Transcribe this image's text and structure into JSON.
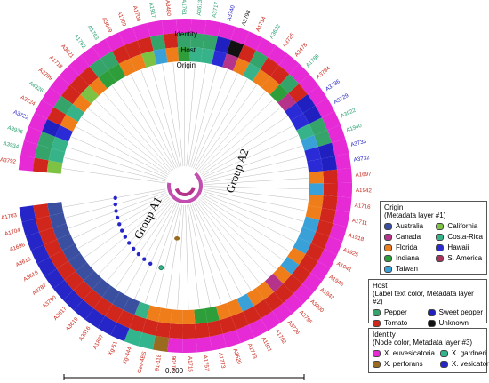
{
  "ring_labels": {
    "identity": "Identity",
    "host": "Host",
    "origin": "Origin"
  },
  "group_labels": {
    "a1": "Group A1",
    "a2": "Group A2"
  },
  "scale_bar": {
    "label": "0.200"
  },
  "colors": {
    "australia": "#3a4fa0",
    "california": "#7dc242",
    "canada": "#b5338a",
    "costa_rica": "#37b38a",
    "florida": "#ef7d1a",
    "hawaii": "#2a2ad6",
    "indiana": "#2e9e3a",
    "s_america": "#a8325a",
    "taiwan": "#3aa0d8",
    "pepper": "#35a46b",
    "sweet_pepper": "#2020c0",
    "tomato": "#d0261c",
    "unknown": "#111111",
    "x_euvesicatoria": "#e52ad6",
    "x_gardneri": "#32b48c",
    "x_perforans": "#9a6a1e",
    "x_vesicatoria": "#2626c8"
  },
  "legends": {
    "origin": {
      "title_1": "Origin",
      "title_2": "(Metadata layer #1)",
      "entries": [
        "Australia",
        "California",
        "Canada",
        "Costa-Rica",
        "Florida",
        "Hawaii",
        "Indiana",
        "S. America",
        "Taiwan"
      ],
      "swatches": [
        "australia",
        "california",
        "canada",
        "costa_rica",
        "florida",
        "hawaii",
        "indiana",
        "s_america",
        "taiwan"
      ]
    },
    "host": {
      "title_1": "Host",
      "title_2": "(Label text color, Metadata layer #2)",
      "entries": [
        "Pepper",
        "Sweet pepper",
        "Tomato",
        "Unknown"
      ],
      "swatches": [
        "pepper",
        "sweet_pepper",
        "tomato",
        "unknown"
      ]
    },
    "identity": {
      "title_1": "Identity",
      "title_2": "(Node color, Metadata layer #3)",
      "entries": [
        "X. euvesicatoria",
        "X. gardneri",
        "X. perforans",
        "X. vesicatoria"
      ],
      "swatches": [
        "x_euvesicatoria",
        "x_gardneri",
        "x_perforans",
        "x_vesicatoria"
      ]
    }
  },
  "leaves": [
    {
      "name": "A3792",
      "host": "tomato",
      "identity": "x_euvesicatoria",
      "origin": "california"
    },
    {
      "name": "A3934",
      "host": "pepper",
      "identity": "x_euvesicatoria",
      "origin": "costa_rica"
    },
    {
      "name": "A3936",
      "host": "pepper",
      "identity": "x_euvesicatoria",
      "origin": "costa_rica"
    },
    {
      "name": "A3722",
      "host": "sweet_pepper",
      "identity": "x_euvesicatoria",
      "origin": "hawaii"
    },
    {
      "name": "A3724",
      "host": "tomato",
      "identity": "x_euvesicatoria",
      "origin": "florida"
    },
    {
      "name": "A4926",
      "host": "pepper",
      "identity": "x_euvesicatoria",
      "origin": "costa_rica"
    },
    {
      "name": "A3799",
      "host": "tomato",
      "identity": "x_euvesicatoria",
      "origin": "florida"
    },
    {
      "name": "A1718",
      "host": "tomato",
      "identity": "x_euvesicatoria",
      "origin": "california"
    },
    {
      "name": "A3621",
      "host": "tomato",
      "identity": "x_euvesicatoria",
      "origin": "florida"
    },
    {
      "name": "A1762",
      "host": "pepper",
      "identity": "x_euvesicatoria",
      "origin": "indiana"
    },
    {
      "name": "A1763",
      "host": "pepper",
      "identity": "x_euvesicatoria",
      "origin": "indiana"
    },
    {
      "name": "A3649",
      "host": "tomato",
      "identity": "x_euvesicatoria",
      "origin": "florida"
    },
    {
      "name": "A1709",
      "host": "tomato",
      "identity": "x_euvesicatoria",
      "origin": "florida"
    },
    {
      "name": "A1708",
      "host": "tomato",
      "identity": "x_euvesicatoria",
      "origin": "california"
    },
    {
      "name": "A1917",
      "host": "pepper",
      "identity": "x_euvesicatoria",
      "origin": "taiwan"
    },
    {
      "name": "A3480",
      "host": "tomato",
      "identity": "x_euvesicatoria",
      "origin": "florida"
    },
    {
      "name": "A1761",
      "host": "pepper",
      "identity": "x_euvesicatoria",
      "origin": "indiana"
    },
    {
      "name": "A3613",
      "host": "pepper",
      "identity": "x_euvesicatoria",
      "origin": "costa_rica"
    },
    {
      "name": "A3717",
      "host": "pepper",
      "identity": "x_euvesicatoria",
      "origin": "costa_rica"
    },
    {
      "name": "A3740",
      "host": "sweet_pepper",
      "identity": "x_euvesicatoria",
      "origin": "hawaii"
    },
    {
      "name": "A3798",
      "host": "unknown",
      "identity": "x_euvesicatoria",
      "origin": "canada"
    },
    {
      "name": "A1714",
      "host": "tomato",
      "identity": "x_euvesicatoria",
      "origin": "florida"
    },
    {
      "name": "A3622",
      "host": "pepper",
      "identity": "x_euvesicatoria",
      "origin": "costa_rica"
    },
    {
      "name": "A3725",
      "host": "tomato",
      "identity": "x_euvesicatoria",
      "origin": "florida"
    },
    {
      "name": "A3478",
      "host": "tomato",
      "identity": "x_euvesicatoria",
      "origin": "florida"
    },
    {
      "name": "A1786",
      "host": "pepper",
      "identity": "x_euvesicatoria",
      "origin": "indiana"
    },
    {
      "name": "A3794",
      "host": "tomato",
      "identity": "x_euvesicatoria",
      "origin": "canada"
    },
    {
      "name": "A3736",
      "host": "sweet_pepper",
      "identity": "x_euvesicatoria",
      "origin": "hawaii"
    },
    {
      "name": "A3729",
      "host": "sweet_pepper",
      "identity": "x_euvesicatoria",
      "origin": "hawaii"
    },
    {
      "name": "A3922",
      "host": "pepper",
      "identity": "x_euvesicatoria",
      "origin": "costa_rica"
    },
    {
      "name": "A1940",
      "host": "pepper",
      "identity": "x_euvesicatoria",
      "origin": "taiwan"
    },
    {
      "name": "A3733",
      "host": "sweet_pepper",
      "identity": "x_euvesicatoria",
      "origin": "hawaii"
    },
    {
      "name": "A3732",
      "host": "sweet_pepper",
      "identity": "x_euvesicatoria",
      "origin": "hawaii"
    },
    {
      "name": "A1697",
      "host": "tomato",
      "identity": "x_euvesicatoria",
      "origin": "florida"
    },
    {
      "name": "A1942",
      "host": "tomato",
      "identity": "x_euvesicatoria",
      "origin": "taiwan"
    },
    {
      "name": "A1716",
      "host": "tomato",
      "identity": "x_euvesicatoria",
      "origin": "florida"
    },
    {
      "name": "A1711",
      "host": "tomato",
      "identity": "x_euvesicatoria",
      "origin": "florida"
    },
    {
      "name": "A1918",
      "host": "tomato",
      "identity": "x_euvesicatoria",
      "origin": "taiwan"
    },
    {
      "name": "A1925",
      "host": "tomato",
      "identity": "x_euvesicatoria",
      "origin": "taiwan"
    },
    {
      "name": "A1941",
      "host": "tomato",
      "identity": "x_euvesicatoria",
      "origin": "taiwan"
    },
    {
      "name": "A1946",
      "host": "tomato",
      "identity": "x_euvesicatoria",
      "origin": "florida"
    },
    {
      "name": "A1943",
      "host": "tomato",
      "identity": "x_euvesicatoria",
      "origin": "taiwan"
    },
    {
      "name": "A3800",
      "host": "tomato",
      "identity": "x_euvesicatoria",
      "origin": "florida"
    },
    {
      "name": "A3795",
      "host": "tomato",
      "identity": "x_euvesicatoria",
      "origin": "canada"
    },
    {
      "name": "A3726",
      "host": "tomato",
      "identity": "x_euvesicatoria",
      "origin": "florida"
    },
    {
      "name": "A1702",
      "host": "tomato",
      "identity": "x_euvesicatoria",
      "origin": "florida"
    },
    {
      "name": "A1921",
      "host": "tomato",
      "identity": "x_euvesicatoria",
      "origin": "taiwan"
    },
    {
      "name": "A1713",
      "host": "tomato",
      "identity": "x_euvesicatoria",
      "origin": "florida"
    },
    {
      "name": "A3620",
      "host": "tomato",
      "identity": "x_euvesicatoria",
      "origin": "florida"
    },
    {
      "name": "A1773",
      "host": "tomato",
      "identity": "x_euvesicatoria",
      "origin": "indiana"
    },
    {
      "name": "A1757",
      "host": "tomato",
      "identity": "x_euvesicatoria",
      "origin": "indiana"
    },
    {
      "name": "A1715",
      "host": "tomato",
      "identity": "x_euvesicatoria",
      "origin": "florida"
    },
    {
      "name": "A1706",
      "host": "tomato",
      "identity": "x_euvesicatoria",
      "origin": "florida"
    },
    {
      "name": "91-118",
      "host": "tomato",
      "identity": "x_perforans",
      "origin": "florida"
    },
    {
      "name": "Gev-4ES",
      "host": "tomato",
      "identity": "x_gardneri",
      "origin": "florida"
    },
    {
      "name": "Xg-444",
      "host": "tomato",
      "identity": "x_gardneri",
      "origin": "costa_rica"
    },
    {
      "name": "Xg-51",
      "host": "tomato",
      "identity": "x_vesicatoria",
      "origin": "australia"
    },
    {
      "name": "A1887",
      "host": "tomato",
      "identity": "x_vesicatoria",
      "origin": "australia"
    },
    {
      "name": "A3616",
      "host": "tomato",
      "identity": "x_vesicatoria",
      "origin": "australia"
    },
    {
      "name": "A3619",
      "host": "tomato",
      "identity": "x_vesicatoria",
      "origin": "australia"
    },
    {
      "name": "A3617",
      "host": "tomato",
      "identity": "x_vesicatoria",
      "origin": "australia"
    },
    {
      "name": "A3790",
      "host": "tomato",
      "identity": "x_vesicatoria",
      "origin": "australia"
    },
    {
      "name": "A3787",
      "host": "tomato",
      "identity": "x_vesicatoria",
      "origin": "australia"
    },
    {
      "name": "A3618",
      "host": "tomato",
      "identity": "x_vesicatoria",
      "origin": "australia"
    },
    {
      "name": "A3615",
      "host": "tomato",
      "identity": "x_vesicatoria",
      "origin": "australia"
    },
    {
      "name": "A1696",
      "host": "tomato",
      "identity": "x_vesicatoria",
      "origin": "australia"
    },
    {
      "name": "A1704",
      "host": "tomato",
      "identity": "x_vesicatoria",
      "origin": "australia"
    },
    {
      "name": "A1703",
      "host": "tomato",
      "identity": "x_vesicatoria",
      "origin": "australia"
    }
  ]
}
